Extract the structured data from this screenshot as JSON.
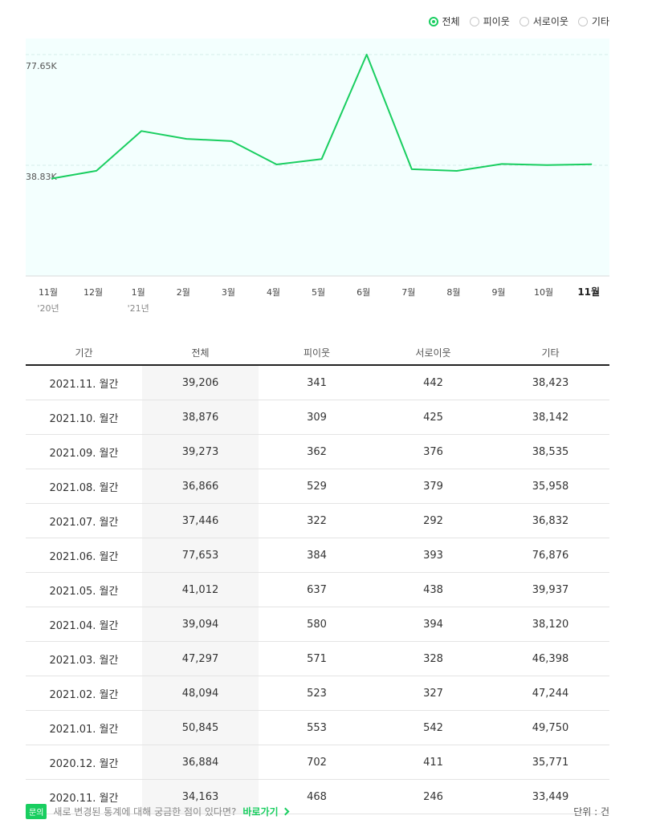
{
  "legend": {
    "items": [
      {
        "label": "전체",
        "checked": true
      },
      {
        "label": "피이웃",
        "checked": false
      },
      {
        "label": "서로이웃",
        "checked": false
      },
      {
        "label": "기타",
        "checked": false
      }
    ]
  },
  "colors": {
    "accent": "#19ce60",
    "chart_bg": "#f3fffe"
  },
  "chart_data": {
    "type": "line",
    "categories": [
      "11월",
      "12월",
      "1월",
      "2월",
      "3월",
      "4월",
      "5월",
      "6월",
      "7월",
      "8월",
      "9월",
      "10월",
      "11월"
    ],
    "year_labels": [
      {
        "index": 0,
        "label": "'20년"
      },
      {
        "index": 2,
        "label": "'21년"
      }
    ],
    "series": [
      {
        "values": [
          34163,
          36884,
          50845,
          48094,
          47297,
          39094,
          41012,
          77653,
          37446,
          36866,
          39273,
          38876,
          39206
        ]
      }
    ],
    "y_ticks": [
      {
        "value": 38826,
        "label": "38.83K"
      },
      {
        "value": 77653,
        "label": "77.65K"
      }
    ],
    "ylim": [
      0,
      77653
    ],
    "highlight_category_index": 12,
    "grid": true
  },
  "table": {
    "headers": [
      "기간",
      "전체",
      "피이웃",
      "서로이웃",
      "기타"
    ],
    "rows": [
      [
        "2021.11. 월간",
        "39,206",
        "341",
        "442",
        "38,423"
      ],
      [
        "2021.10. 월간",
        "38,876",
        "309",
        "425",
        "38,142"
      ],
      [
        "2021.09. 월간",
        "39,273",
        "362",
        "376",
        "38,535"
      ],
      [
        "2021.08. 월간",
        "36,866",
        "529",
        "379",
        "35,958"
      ],
      [
        "2021.07. 월간",
        "37,446",
        "322",
        "292",
        "36,832"
      ],
      [
        "2021.06. 월간",
        "77,653",
        "384",
        "393",
        "76,876"
      ],
      [
        "2021.05. 월간",
        "41,012",
        "637",
        "438",
        "39,937"
      ],
      [
        "2021.04. 월간",
        "39,094",
        "580",
        "394",
        "38,120"
      ],
      [
        "2021.03. 월간",
        "47,297",
        "571",
        "328",
        "46,398"
      ],
      [
        "2021.02. 월간",
        "48,094",
        "523",
        "327",
        "47,244"
      ],
      [
        "2021.01. 월간",
        "50,845",
        "553",
        "542",
        "49,750"
      ],
      [
        "2020.12. 월간",
        "36,884",
        "702",
        "411",
        "35,771"
      ],
      [
        "2020.11. 월간",
        "34,163",
        "468",
        "246",
        "33,449"
      ]
    ]
  },
  "footer": {
    "badge": "문의",
    "notice": "새로 변경된 통계에 대해 궁금한 점이 있다면?",
    "link": "바로가기",
    "unit": "단위 : 건"
  }
}
